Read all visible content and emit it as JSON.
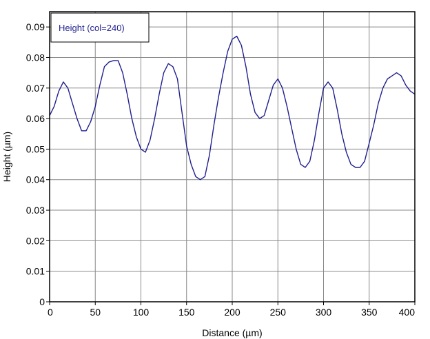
{
  "chart_data": {
    "type": "line",
    "xlabel": "Distance (µm)",
    "ylabel": "Height (µm)",
    "xlim": [
      0,
      400
    ],
    "ylim": [
      0,
      0.095
    ],
    "xticks": [
      "0",
      "50",
      "100",
      "150",
      "200",
      "250",
      "300",
      "350",
      "400"
    ],
    "xtick_values": [
      0,
      50,
      100,
      150,
      200,
      250,
      300,
      350,
      400
    ],
    "yticks": [
      "0",
      "0.01",
      "0.02",
      "0.03",
      "0.04",
      "0.05",
      "0.06",
      "0.07",
      "0.08",
      "0.09"
    ],
    "ytick_values": [
      0,
      0.01,
      0.02,
      0.03,
      0.04,
      0.05,
      0.06,
      0.07,
      0.08,
      0.09
    ],
    "grid": true,
    "legend": {
      "placement": "top-left",
      "entries": [
        "Height (col=240)"
      ]
    },
    "series": [
      {
        "name": "Height (col=240)",
        "color": "#1f1f8f",
        "x": [
          0,
          5,
          10,
          15,
          20,
          25,
          30,
          35,
          40,
          45,
          50,
          55,
          60,
          65,
          70,
          75,
          80,
          85,
          90,
          95,
          100,
          105,
          110,
          115,
          120,
          125,
          130,
          135,
          140,
          145,
          150,
          155,
          160,
          165,
          170,
          175,
          180,
          185,
          190,
          195,
          200,
          205,
          210,
          215,
          220,
          225,
          230,
          235,
          240,
          245,
          250,
          255,
          260,
          265,
          270,
          275,
          280,
          285,
          290,
          295,
          300,
          305,
          310,
          315,
          320,
          325,
          330,
          335,
          340,
          345,
          350,
          355,
          360,
          365,
          370,
          375,
          380,
          385,
          390,
          395,
          400
        ],
        "y": [
          0.061,
          0.064,
          0.069,
          0.072,
          0.07,
          0.065,
          0.06,
          0.056,
          0.056,
          0.059,
          0.064,
          0.071,
          0.077,
          0.0785,
          0.079,
          0.079,
          0.075,
          0.068,
          0.06,
          0.054,
          0.05,
          0.049,
          0.053,
          0.06,
          0.068,
          0.075,
          0.078,
          0.077,
          0.073,
          0.062,
          0.051,
          0.045,
          0.041,
          0.04,
          0.041,
          0.048,
          0.058,
          0.067,
          0.075,
          0.082,
          0.086,
          0.087,
          0.084,
          0.077,
          0.068,
          0.062,
          0.06,
          0.061,
          0.066,
          0.071,
          0.073,
          0.07,
          0.064,
          0.057,
          0.05,
          0.045,
          0.044,
          0.046,
          0.053,
          0.062,
          0.07,
          0.072,
          0.07,
          0.063,
          0.055,
          0.049,
          0.045,
          0.044,
          0.044,
          0.046,
          0.052,
          0.058,
          0.065,
          0.07,
          0.073,
          0.074,
          0.075,
          0.074,
          0.071,
          0.069,
          0.068
        ]
      }
    ]
  }
}
